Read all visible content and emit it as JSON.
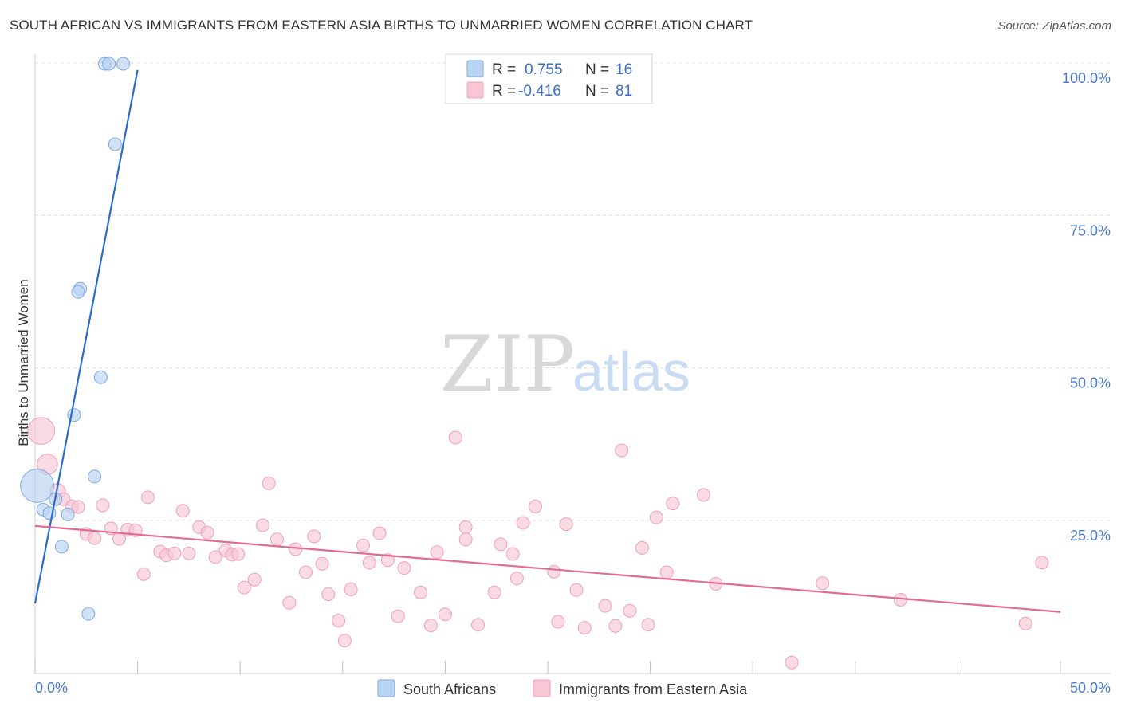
{
  "title": "SOUTH AFRICAN VS IMMIGRANTS FROM EASTERN ASIA BIRTHS TO UNMARRIED WOMEN CORRELATION CHART",
  "source": "Source: ZipAtlas.com",
  "watermark": {
    "zip": "ZIP",
    "atlas": "atlas"
  },
  "colors": {
    "blue_fill": "#b9d3f3",
    "blue_stroke": "#7ea8df",
    "blue_line": "#2a6ccc",
    "pink_fill": "#f8c6d4",
    "pink_stroke": "#eea0b7",
    "pink_line": "#e26b96",
    "tick_text": "#4a7ad0"
  },
  "legend": {
    "rows": [
      {
        "r_label": "R =",
        "r_value": "0.755",
        "n_label": "N =",
        "n_value": "16",
        "color": "#b9d3f3"
      },
      {
        "r_label": "R =",
        "r_value": "-0.416",
        "n_label": "N =",
        "n_value": "81",
        "color": "#f8c6d4"
      }
    ]
  },
  "chart_data": {
    "type": "scatter",
    "title": "SOUTH AFRICAN VS IMMIGRANTS FROM EASTERN ASIA BIRTHS TO UNMARRIED WOMEN CORRELATION CHART",
    "xlabel": "",
    "ylabel": "Births to Unmarried Women",
    "xlim": [
      0,
      50
    ],
    "ylim": [
      0,
      100
    ],
    "x_tick_labels": [
      "0.0%",
      "50.0%"
    ],
    "y_ticks": [
      25,
      50,
      75,
      100
    ],
    "y_tick_labels": [
      "25.0%",
      "50.0%",
      "75.0%",
      "100.0%"
    ],
    "legend_position": "bottom",
    "series": [
      {
        "name": "South Africans",
        "color": "#b9d3f3",
        "trend": {
          "x": [
            0.0,
            5.0
          ],
          "y": [
            11.5,
            99.0
          ]
        },
        "points": [
          {
            "x": 3.4,
            "y": 100.0,
            "s": 1
          },
          {
            "x": 3.6,
            "y": 100.0,
            "s": 1
          },
          {
            "x": 4.3,
            "y": 100.0,
            "s": 1
          },
          {
            "x": 3.9,
            "y": 86.8,
            "s": 1
          },
          {
            "x": 2.2,
            "y": 63.1,
            "s": 1
          },
          {
            "x": 2.1,
            "y": 62.6,
            "s": 1
          },
          {
            "x": 3.2,
            "y": 48.6,
            "s": 1
          },
          {
            "x": 1.9,
            "y": 42.4,
            "s": 1
          },
          {
            "x": 2.9,
            "y": 32.3,
            "s": 1
          },
          {
            "x": 0.1,
            "y": 30.8,
            "s": 2.6
          },
          {
            "x": 1.0,
            "y": 28.6,
            "s": 1
          },
          {
            "x": 0.4,
            "y": 26.9,
            "s": 1
          },
          {
            "x": 0.7,
            "y": 26.3,
            "s": 1
          },
          {
            "x": 1.6,
            "y": 26.1,
            "s": 1
          },
          {
            "x": 1.3,
            "y": 20.8,
            "s": 1
          },
          {
            "x": 2.6,
            "y": 9.8,
            "s": 1
          }
        ]
      },
      {
        "name": "Immigrants from Eastern Asia",
        "color": "#f8c6d4",
        "trend": {
          "x": [
            0.0,
            50.0
          ],
          "y": [
            24.2,
            10.1
          ]
        },
        "points": [
          {
            "x": 0.3,
            "y": 39.8,
            "s": 2.1
          },
          {
            "x": 0.6,
            "y": 34.3,
            "s": 1.6
          },
          {
            "x": 1.1,
            "y": 29.9,
            "s": 1.2
          },
          {
            "x": 1.4,
            "y": 28.6,
            "s": 1
          },
          {
            "x": 1.8,
            "y": 27.4,
            "s": 1
          },
          {
            "x": 2.1,
            "y": 27.3,
            "s": 1
          },
          {
            "x": 2.5,
            "y": 22.9,
            "s": 1
          },
          {
            "x": 2.9,
            "y": 22.2,
            "s": 1
          },
          {
            "x": 3.3,
            "y": 27.6,
            "s": 1
          },
          {
            "x": 3.7,
            "y": 23.8,
            "s": 1
          },
          {
            "x": 4.1,
            "y": 22.1,
            "s": 1
          },
          {
            "x": 4.5,
            "y": 23.6,
            "s": 1
          },
          {
            "x": 4.9,
            "y": 23.5,
            "s": 1
          },
          {
            "x": 5.3,
            "y": 16.3,
            "s": 1
          },
          {
            "x": 5.5,
            "y": 28.9,
            "s": 1
          },
          {
            "x": 6.1,
            "y": 20.0,
            "s": 1
          },
          {
            "x": 6.4,
            "y": 19.4,
            "s": 1
          },
          {
            "x": 6.8,
            "y": 19.7,
            "s": 1
          },
          {
            "x": 7.2,
            "y": 26.7,
            "s": 1
          },
          {
            "x": 7.5,
            "y": 19.7,
            "s": 1
          },
          {
            "x": 8.0,
            "y": 24.0,
            "s": 1
          },
          {
            "x": 8.4,
            "y": 23.1,
            "s": 1
          },
          {
            "x": 8.8,
            "y": 19.1,
            "s": 1
          },
          {
            "x": 9.3,
            "y": 20.2,
            "s": 1
          },
          {
            "x": 9.6,
            "y": 19.5,
            "s": 1
          },
          {
            "x": 9.9,
            "y": 19.6,
            "s": 1
          },
          {
            "x": 10.2,
            "y": 14.1,
            "s": 1
          },
          {
            "x": 10.7,
            "y": 15.4,
            "s": 1
          },
          {
            "x": 11.1,
            "y": 24.3,
            "s": 1
          },
          {
            "x": 11.4,
            "y": 31.2,
            "s": 1
          },
          {
            "x": 11.8,
            "y": 22.0,
            "s": 1
          },
          {
            "x": 12.4,
            "y": 11.6,
            "s": 1
          },
          {
            "x": 12.7,
            "y": 20.4,
            "s": 1
          },
          {
            "x": 13.2,
            "y": 16.6,
            "s": 1
          },
          {
            "x": 13.6,
            "y": 22.5,
            "s": 1
          },
          {
            "x": 14.0,
            "y": 18.0,
            "s": 1
          },
          {
            "x": 14.3,
            "y": 13.0,
            "s": 1
          },
          {
            "x": 14.8,
            "y": 8.7,
            "s": 1
          },
          {
            "x": 15.1,
            "y": 5.4,
            "s": 1
          },
          {
            "x": 15.4,
            "y": 13.8,
            "s": 1
          },
          {
            "x": 16.0,
            "y": 21.0,
            "s": 1
          },
          {
            "x": 16.3,
            "y": 18.2,
            "s": 1
          },
          {
            "x": 16.8,
            "y": 23.0,
            "s": 1
          },
          {
            "x": 17.2,
            "y": 18.6,
            "s": 1
          },
          {
            "x": 17.7,
            "y": 9.4,
            "s": 1
          },
          {
            "x": 18.0,
            "y": 17.3,
            "s": 1
          },
          {
            "x": 18.8,
            "y": 13.3,
            "s": 1
          },
          {
            "x": 19.3,
            "y": 7.9,
            "s": 1
          },
          {
            "x": 19.6,
            "y": 19.9,
            "s": 1
          },
          {
            "x": 20.0,
            "y": 9.7,
            "s": 1
          },
          {
            "x": 20.5,
            "y": 38.7,
            "s": 1
          },
          {
            "x": 21.0,
            "y": 24.0,
            "s": 1
          },
          {
            "x": 21.0,
            "y": 22.0,
            "s": 1
          },
          {
            "x": 21.6,
            "y": 8.0,
            "s": 1
          },
          {
            "x": 22.4,
            "y": 13.3,
            "s": 1
          },
          {
            "x": 22.7,
            "y": 21.2,
            "s": 1
          },
          {
            "x": 23.3,
            "y": 19.6,
            "s": 1
          },
          {
            "x": 23.5,
            "y": 15.6,
            "s": 1
          },
          {
            "x": 23.8,
            "y": 24.7,
            "s": 1
          },
          {
            "x": 24.4,
            "y": 27.4,
            "s": 1
          },
          {
            "x": 25.3,
            "y": 16.7,
            "s": 1
          },
          {
            "x": 25.5,
            "y": 8.5,
            "s": 1
          },
          {
            "x": 25.9,
            "y": 24.5,
            "s": 1
          },
          {
            "x": 26.4,
            "y": 13.7,
            "s": 1
          },
          {
            "x": 26.8,
            "y": 7.5,
            "s": 1
          },
          {
            "x": 27.8,
            "y": 11.1,
            "s": 1
          },
          {
            "x": 28.3,
            "y": 7.8,
            "s": 1
          },
          {
            "x": 28.6,
            "y": 36.6,
            "s": 1
          },
          {
            "x": 29.0,
            "y": 10.3,
            "s": 1
          },
          {
            "x": 29.6,
            "y": 20.6,
            "s": 1
          },
          {
            "x": 29.9,
            "y": 8.0,
            "s": 1
          },
          {
            "x": 30.3,
            "y": 25.6,
            "s": 1
          },
          {
            "x": 30.8,
            "y": 16.6,
            "s": 1
          },
          {
            "x": 31.1,
            "y": 27.9,
            "s": 1
          },
          {
            "x": 32.6,
            "y": 29.3,
            "s": 1
          },
          {
            "x": 33.2,
            "y": 14.7,
            "s": 1
          },
          {
            "x": 36.9,
            "y": 1.8,
            "s": 1
          },
          {
            "x": 38.4,
            "y": 14.8,
            "s": 1
          },
          {
            "x": 42.2,
            "y": 12.1,
            "s": 1
          },
          {
            "x": 48.3,
            "y": 8.2,
            "s": 1
          },
          {
            "x": 49.1,
            "y": 18.2,
            "s": 1
          }
        ]
      }
    ]
  }
}
